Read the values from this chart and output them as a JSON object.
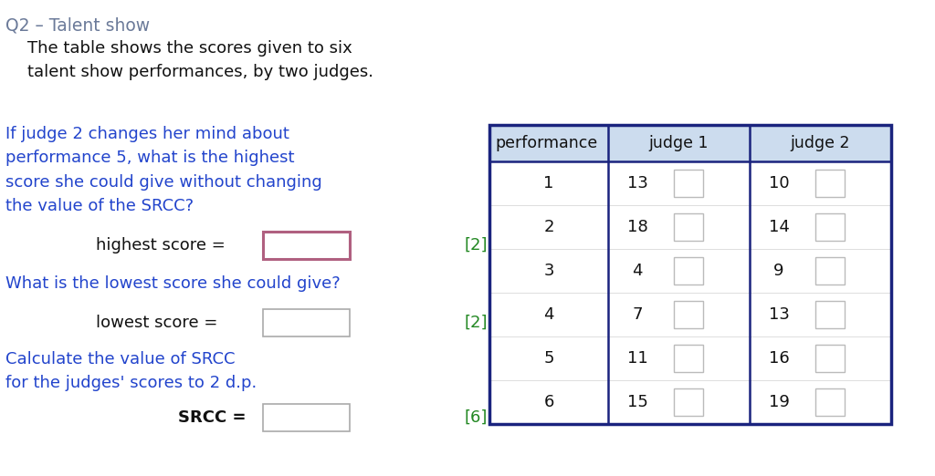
{
  "title": "Q2 – Talent show",
  "title_color": "#6b7a99",
  "intro_text": "The table shows the scores given to six\ntalent show performances, by two judges.",
  "question1_text": "If judge 2 changes her mind about\nperformance 5, what is the highest\nscore she could give without changing\nthe value of the SRCC?",
  "question1_color": "#2244cc",
  "label_highest": "highest score =",
  "marks1": "[2]",
  "question2_text": "What is the lowest score she could give?",
  "question2_color": "#2244cc",
  "label_lowest": "lowest score =",
  "marks2": "[2]",
  "question3_text": "Calculate the value of SRCC\nfor the judges' scores to 2 d.p.",
  "question3_color": "#2244cc",
  "label_srcc": "SRCC =",
  "marks3": "[6]",
  "marks_color": "#228822",
  "table_header": [
    "performance",
    "judge 1",
    "judge 2"
  ],
  "table_data": [
    [
      1,
      13,
      10
    ],
    [
      2,
      18,
      14
    ],
    [
      3,
      4,
      9
    ],
    [
      4,
      7,
      13
    ],
    [
      5,
      11,
      16
    ],
    [
      6,
      15,
      19
    ]
  ],
  "table_border_color": "#1a237e",
  "table_header_bg": "#ccdcee",
  "box_border_color": "#aaaaaa",
  "highlight_box_color": "#b06080",
  "text_color": "#111111",
  "bg_color": "#ffffff"
}
